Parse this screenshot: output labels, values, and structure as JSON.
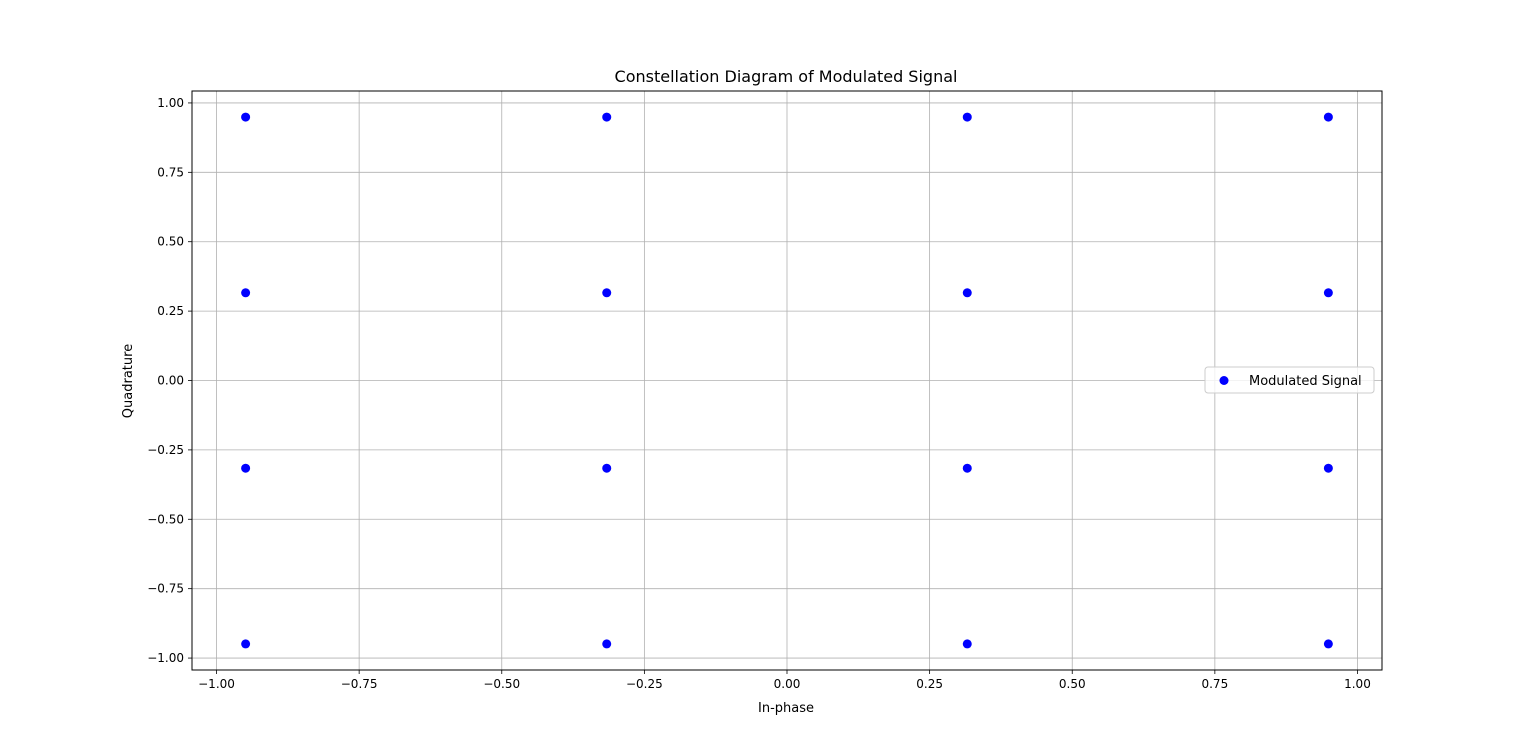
{
  "chart_data": {
    "type": "scatter",
    "title": "Constellation Diagram of Modulated Signal",
    "xlabel": "In-phase",
    "ylabel": "Quadrature",
    "xlim": [
      -1.043,
      1.043
    ],
    "ylim": [
      -1.043,
      1.043
    ],
    "xticks": [
      -1.0,
      -0.75,
      -0.5,
      -0.25,
      0.0,
      0.25,
      0.5,
      0.75,
      1.0
    ],
    "xtick_labels": [
      "−1.00",
      "−0.75",
      "−0.50",
      "−0.25",
      "0.00",
      "0.25",
      "0.50",
      "0.75",
      "1.00"
    ],
    "yticks": [
      -1.0,
      -0.75,
      -0.5,
      -0.25,
      0.0,
      0.25,
      0.5,
      0.75,
      1.0
    ],
    "ytick_labels": [
      "−1.00",
      "−0.75",
      "−0.50",
      "−0.25",
      "0.00",
      "0.25",
      "0.50",
      "0.75",
      "1.00"
    ],
    "grid": true,
    "legend": {
      "placement": "center-right",
      "entries": [
        "Modulated Signal"
      ]
    },
    "series": [
      {
        "name": "Modulated Signal",
        "color": "#0000ff",
        "points": [
          {
            "x": -0.949,
            "y": 0.949
          },
          {
            "x": -0.316,
            "y": 0.949
          },
          {
            "x": 0.316,
            "y": 0.949
          },
          {
            "x": 0.949,
            "y": 0.949
          },
          {
            "x": -0.949,
            "y": 0.316
          },
          {
            "x": -0.316,
            "y": 0.316
          },
          {
            "x": 0.316,
            "y": 0.316
          },
          {
            "x": 0.949,
            "y": 0.316
          },
          {
            "x": -0.949,
            "y": -0.316
          },
          {
            "x": -0.316,
            "y": -0.316
          },
          {
            "x": 0.316,
            "y": -0.316
          },
          {
            "x": 0.949,
            "y": -0.316
          },
          {
            "x": -0.949,
            "y": -0.949
          },
          {
            "x": -0.316,
            "y": -0.949
          },
          {
            "x": 0.316,
            "y": -0.949
          },
          {
            "x": 0.949,
            "y": -0.949
          }
        ]
      }
    ]
  }
}
